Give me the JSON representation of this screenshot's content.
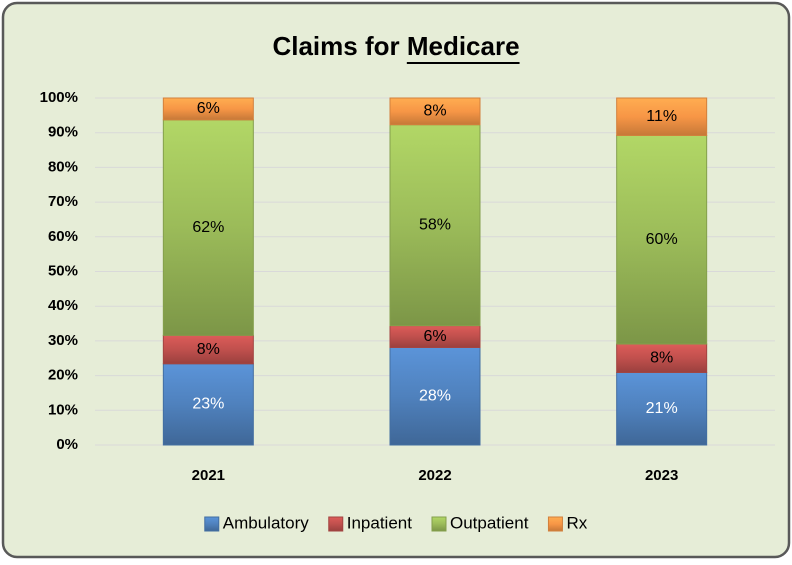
{
  "chart_data": {
    "type": "stacked_bar",
    "title": "Claims for Medicare",
    "categories": [
      "2021",
      "2022",
      "2023"
    ],
    "series": [
      {
        "name": "Ambulatory",
        "color": "#4f81bd",
        "values": [
          23.4,
          28.1,
          20.9
        ],
        "value_labels": [
          "23%",
          "28%",
          "21%"
        ]
      },
      {
        "name": "Inpatient",
        "color": "#c0504d",
        "values": [
          8.2,
          6.3,
          8.2
        ],
        "value_labels": [
          "8%",
          "6%",
          "8%"
        ]
      },
      {
        "name": "Outpatient",
        "color": "#9bbb59",
        "values": [
          62.1,
          57.9,
          60.1
        ],
        "value_labels": [
          "62%",
          "58%",
          "60%"
        ]
      },
      {
        "name": "Rx",
        "color": "#f79646",
        "values": [
          6.3,
          7.7,
          10.8
        ],
        "value_labels": [
          "6%",
          "8%",
          "11%"
        ]
      }
    ],
    "ylim": [
      0,
      100
    ],
    "yticks": [
      {
        "value": 0,
        "label": "0%"
      },
      {
        "value": 10,
        "label": "10%"
      },
      {
        "value": 20,
        "label": "20%"
      },
      {
        "value": 30,
        "label": "30%"
      },
      {
        "value": 40,
        "label": "40%"
      },
      {
        "value": 50,
        "label": "50%"
      },
      {
        "value": 60,
        "label": "60%"
      },
      {
        "value": 70,
        "label": "70%"
      },
      {
        "value": 80,
        "label": "80%"
      },
      {
        "value": 90,
        "label": "90%"
      },
      {
        "value": 100,
        "label": "100%"
      }
    ],
    "grid": true,
    "legend": "bottom"
  }
}
